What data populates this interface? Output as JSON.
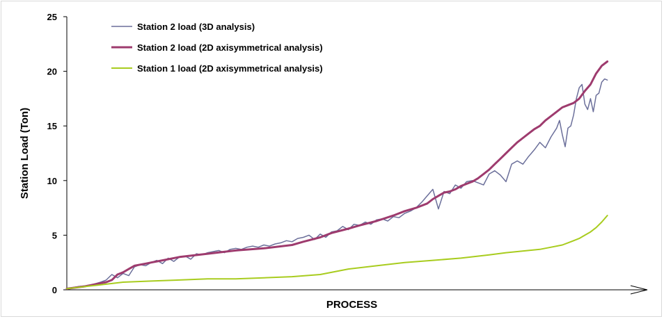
{
  "chart_data": {
    "type": "line",
    "title": "",
    "xlabel": "PROCESS",
    "ylabel": "Station Load (Ton)",
    "x_has_ticks": false,
    "x_range": [
      0,
      100
    ],
    "ylim": [
      0,
      25
    ],
    "yticks": [
      0,
      5,
      10,
      15,
      20,
      25
    ],
    "grid": false,
    "legend_position": "top-left",
    "series": [
      {
        "name": "Station 2 load (3D analysis)",
        "color": "#6b6f9a",
        "x": [
          0,
          2,
          4,
          6,
          7,
          8,
          9,
          10,
          11,
          12,
          13,
          14,
          15,
          16,
          17,
          18,
          19,
          20,
          21,
          22,
          23,
          24,
          25,
          26,
          27,
          28,
          29,
          30,
          31,
          32,
          33,
          34,
          35,
          36,
          37,
          38,
          39,
          40,
          41,
          42,
          43,
          44,
          45,
          46,
          47,
          48,
          49,
          50,
          51,
          52,
          53,
          54,
          55,
          56,
          57,
          58,
          59,
          60,
          61,
          62,
          63,
          64,
          65,
          66,
          67,
          68,
          69,
          70,
          71,
          72,
          73,
          74,
          75,
          76,
          77,
          78,
          79,
          80,
          81,
          82,
          83,
          84,
          85,
          86,
          87,
          87.5,
          88,
          88.5,
          89,
          89.5,
          90,
          90.5,
          91,
          91.5,
          92,
          92.5,
          93,
          93.5,
          94,
          94.5,
          95,
          95.5,
          96
        ],
        "values": [
          0.1,
          0.3,
          0.4,
          0.7,
          0.9,
          1.4,
          1.1,
          1.5,
          1.3,
          2.1,
          2.3,
          2.2,
          2.5,
          2.7,
          2.4,
          2.9,
          2.6,
          3.0,
          3.1,
          2.8,
          3.3,
          3.2,
          3.4,
          3.5,
          3.6,
          3.4,
          3.7,
          3.8,
          3.7,
          3.9,
          4.0,
          3.9,
          4.1,
          4.0,
          4.2,
          4.3,
          4.5,
          4.4,
          4.7,
          4.8,
          5.0,
          4.6,
          5.1,
          4.8,
          5.3,
          5.4,
          5.8,
          5.5,
          6.0,
          5.9,
          6.2,
          6.0,
          6.4,
          6.5,
          6.3,
          6.7,
          6.6,
          7.0,
          7.2,
          7.5,
          8.0,
          8.6,
          9.2,
          7.4,
          9.0,
          8.8,
          9.6,
          9.3,
          9.9,
          10.0,
          9.8,
          9.6,
          10.6,
          10.9,
          10.5,
          9.9,
          11.5,
          11.8,
          11.5,
          12.2,
          12.8,
          13.5,
          13.0,
          14.0,
          14.8,
          15.5,
          14.2,
          13.1,
          14.8,
          15.0,
          16.0,
          17.5,
          18.5,
          18.8,
          17.0,
          16.5,
          17.5,
          16.3,
          17.8,
          18.0,
          19.0,
          19.3,
          19.2
        ]
      },
      {
        "name": "Station 2 load (2D axisymmetrical analysis)",
        "color": "#9e3b6e",
        "x": [
          0,
          3,
          5,
          7,
          8,
          9,
          10,
          11,
          12,
          13,
          14,
          15,
          17,
          20,
          25,
          30,
          35,
          40,
          42,
          45,
          47,
          50,
          52,
          55,
          58,
          60,
          62,
          64,
          65,
          66,
          67,
          68,
          69,
          70,
          71,
          72,
          73,
          74,
          75,
          76,
          77,
          78,
          79,
          80,
          81,
          82,
          83,
          84,
          85,
          86,
          87,
          88,
          89,
          90,
          91,
          92,
          93,
          94,
          95,
          96
        ],
        "values": [
          0.1,
          0.3,
          0.5,
          0.7,
          0.9,
          1.4,
          1.6,
          1.9,
          2.2,
          2.3,
          2.4,
          2.5,
          2.7,
          3.0,
          3.3,
          3.6,
          3.8,
          4.1,
          4.4,
          4.8,
          5.2,
          5.6,
          5.9,
          6.3,
          6.8,
          7.2,
          7.5,
          7.9,
          8.3,
          8.6,
          8.9,
          9.0,
          9.2,
          9.5,
          9.7,
          9.9,
          10.2,
          10.6,
          11.0,
          11.5,
          12.0,
          12.5,
          13.0,
          13.5,
          13.9,
          14.3,
          14.7,
          15.0,
          15.5,
          15.9,
          16.3,
          16.7,
          16.9,
          17.1,
          17.5,
          18.2,
          18.8,
          19.8,
          20.5,
          20.9
        ]
      },
      {
        "name": "Station 1 load (2D axisymmetrical analysis)",
        "color": "#a8cc1e",
        "x": [
          0,
          5,
          10,
          15,
          20,
          25,
          30,
          35,
          40,
          45,
          50,
          55,
          60,
          65,
          70,
          75,
          78,
          80,
          82,
          84,
          86,
          88,
          89,
          90,
          91,
          92,
          93,
          94,
          95,
          96
        ],
        "values": [
          0.1,
          0.4,
          0.7,
          0.8,
          0.9,
          1.0,
          1.0,
          1.1,
          1.2,
          1.4,
          1.9,
          2.2,
          2.5,
          2.7,
          2.9,
          3.2,
          3.4,
          3.5,
          3.6,
          3.7,
          3.9,
          4.1,
          4.3,
          4.5,
          4.7,
          5.0,
          5.3,
          5.7,
          6.2,
          6.8
        ]
      }
    ]
  }
}
